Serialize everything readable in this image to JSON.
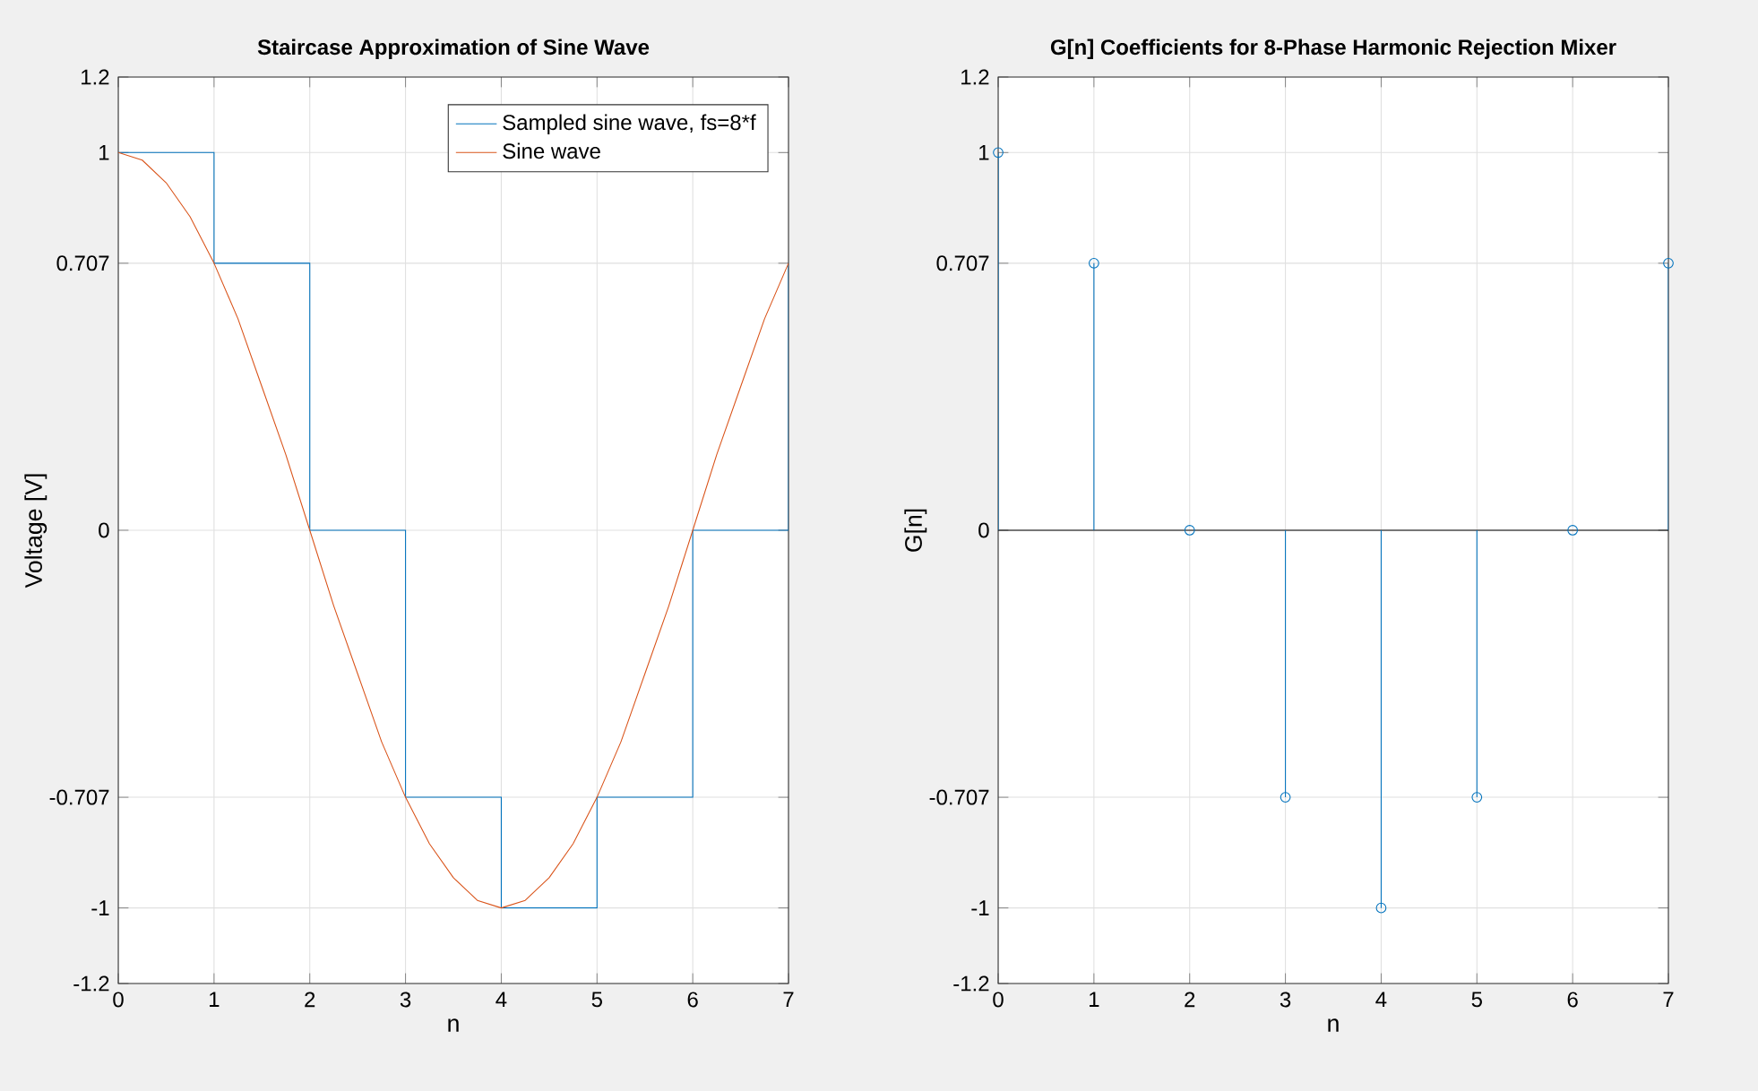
{
  "chart_data": [
    {
      "type": "line",
      "title": "Staircase Approximation of Sine Wave",
      "xlabel": "n",
      "ylabel": "Voltage [V]",
      "xlim": [
        0,
        7
      ],
      "xticks": [
        0,
        1,
        2,
        3,
        4,
        5,
        6,
        7
      ],
      "ylim": [
        -1.2,
        1.2
      ],
      "yticks": [
        -1.2,
        -1,
        -0.707,
        0,
        0.707,
        1,
        1.2
      ],
      "grid": true,
      "legend": "top right",
      "series": [
        {
          "name": "Sampled sine wave, fs=8*f",
          "type": "step",
          "color": "#0072bd",
          "x": [
            0,
            1,
            2,
            3,
            4,
            5,
            6,
            7
          ],
          "values": [
            1,
            0.707,
            0,
            -0.707,
            -1,
            -0.707,
            0,
            0.707
          ]
        },
        {
          "name": "Sine wave",
          "type": "line",
          "color": "#d95319",
          "x": [
            0,
            0.25,
            0.5,
            0.75,
            1,
            1.25,
            1.5,
            1.75,
            2,
            2.25,
            2.5,
            2.75,
            3,
            3.25,
            3.5,
            3.75,
            4,
            4.25,
            4.5,
            4.75,
            5,
            5.25,
            5.5,
            5.75,
            6,
            6.25,
            6.5,
            6.75,
            7
          ],
          "values": [
            1,
            0.98,
            0.92,
            0.83,
            0.707,
            0.56,
            0.38,
            0.2,
            0,
            -0.2,
            -0.38,
            -0.56,
            -0.707,
            -0.83,
            -0.92,
            -0.98,
            -1,
            -0.98,
            -0.92,
            -0.83,
            -0.707,
            -0.56,
            -0.38,
            -0.2,
            0,
            0.2,
            0.38,
            0.56,
            0.707
          ]
        }
      ]
    },
    {
      "type": "lollipop",
      "title": "G[n] Coefficients for 8-Phase Harmonic Rejection Mixer",
      "xlabel": "n",
      "ylabel": "G[n]",
      "x": [
        0,
        1,
        2,
        3,
        4,
        5,
        6,
        7
      ],
      "xlim": [
        0,
        7
      ],
      "xticks": [
        0,
        1,
        2,
        3,
        4,
        5,
        6,
        7
      ],
      "ylim": [
        -1.2,
        1.2
      ],
      "yticks": [
        -1.2,
        -1,
        -0.707,
        0,
        0.707,
        1,
        1.2
      ],
      "grid": true,
      "marker": "circle",
      "series": [
        {
          "color": "#0072bd",
          "values": [
            1,
            0.707,
            0,
            -0.707,
            -1,
            -0.707,
            0,
            0.707
          ]
        }
      ]
    }
  ]
}
